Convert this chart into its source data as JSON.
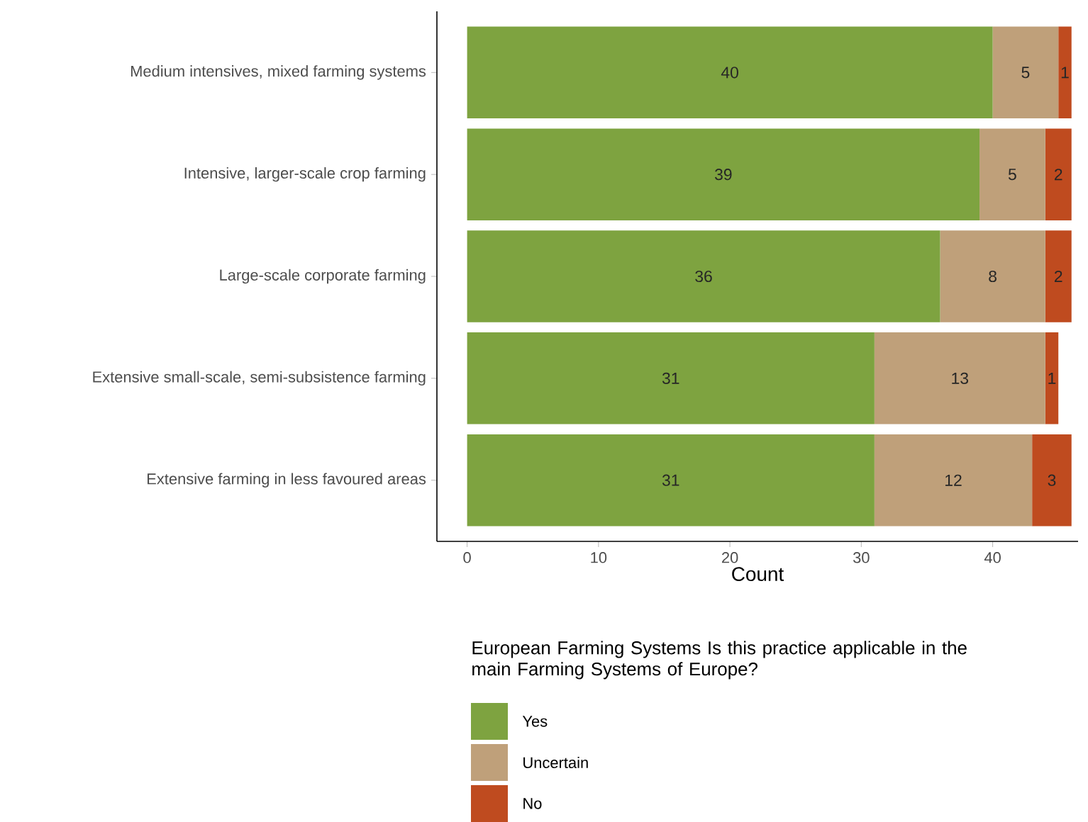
{
  "chart_data": {
    "type": "bar",
    "orientation": "horizontal",
    "stacked": true,
    "xlabel": "Count",
    "legend_title": "European Farming Systems Is this practice applicable in the main Farming Systems of Europe?",
    "legend": "bottom",
    "data_labels": true,
    "grid": false,
    "categories": [
      "Medium intensives, mixed farming systems",
      "Intensive, larger-scale crop farming",
      "Large-scale corporate farming",
      "Extensive small-scale, semi-subsistence farming",
      "Extensive farming in less favoured areas"
    ],
    "xlim": [
      -2.3,
      46.5
    ],
    "xticks": [
      0,
      10,
      20,
      30,
      40
    ],
    "series": [
      {
        "name": "Yes",
        "color": "#7ea340",
        "values": [
          40,
          39,
          36,
          31,
          31
        ]
      },
      {
        "name": "Uncertain",
        "color": "#bfa07a",
        "values": [
          5,
          5,
          8,
          13,
          12
        ]
      },
      {
        "name": "No",
        "color": "#bf4b1f",
        "values": [
          1,
          2,
          2,
          1,
          3
        ]
      }
    ]
  }
}
